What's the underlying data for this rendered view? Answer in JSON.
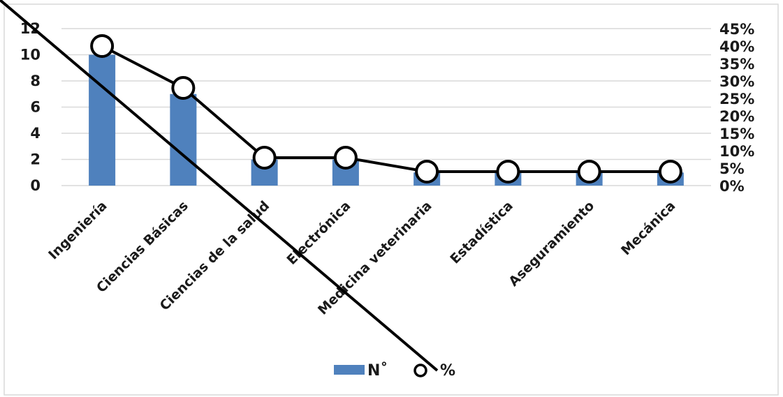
{
  "chart_data": {
    "type": "bar",
    "categories": [
      "Ingeniería",
      "Ciencias Básicas",
      "Ciencias de la salud",
      "Electrónica",
      "Medicina veterinaria",
      "Estadística",
      "Aseguramiento",
      "Mecánica"
    ],
    "series": [
      {
        "name": "N˚",
        "type": "bar",
        "axis": "left",
        "values": [
          10,
          7,
          2,
          2,
          1,
          1,
          1,
          1
        ],
        "color": "#4f81bd"
      },
      {
        "name": "%",
        "type": "line",
        "axis": "right",
        "values": [
          40,
          28,
          8,
          8,
          4,
          4,
          4,
          4
        ],
        "color": "#000000"
      }
    ],
    "y_left": {
      "min": 0,
      "max": 12,
      "ticks": [
        "0",
        "2",
        "4",
        "6",
        "8",
        "10",
        "12"
      ]
    },
    "y_right": {
      "min": 0,
      "max": 45,
      "ticks": [
        "0%",
        "5%",
        "10%",
        "15%",
        "20%",
        "25%",
        "30%",
        "35%",
        "40%",
        "45%"
      ]
    },
    "grid": true,
    "legend_position": "bottom",
    "title": "",
    "xlabel": "",
    "ylabel": ""
  }
}
